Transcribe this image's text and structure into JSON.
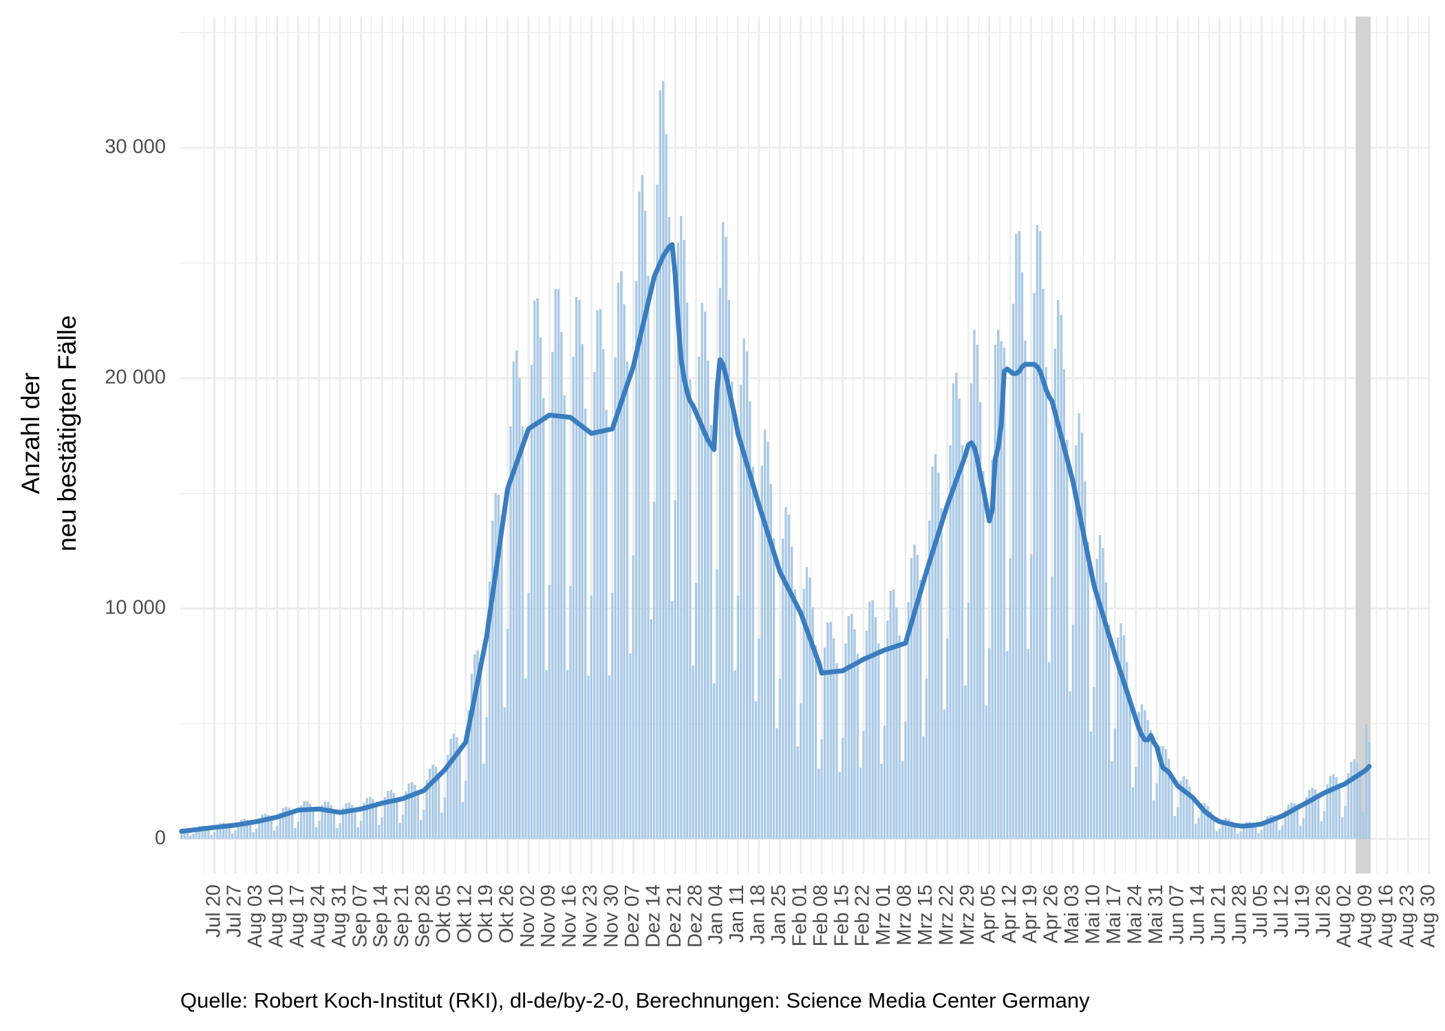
{
  "chart_data": {
    "type": "bar",
    "caption": "Quelle: Robert Koch-Institut (RKI), dl-de/by-2-0, Berechnungen: Science Media Center Germany",
    "ylabel": [
      "Anzahl der",
      "neu bestätigten Fälle"
    ],
    "ylim": [
      -1500,
      35700
    ],
    "yticks": [
      0,
      {
        "value": 10000,
        "label": "10 000"
      },
      {
        "value": 20000,
        "label": "20 000"
      },
      {
        "value": 30000,
        "label": "30 000"
      }
    ],
    "yminorticks": [
      5000,
      15000,
      25000,
      35000
    ],
    "grid": true,
    "color": "#a9c9e6",
    "categories": [
      null,
      null,
      null,
      null,
      null,
      null,
      null,
      null,
      null,
      null,
      null,
      "Jul 20",
      null,
      null,
      null,
      null,
      null,
      null,
      "Jul 27",
      null,
      null,
      null,
      null,
      null,
      null,
      "Aug 03",
      null,
      null,
      null,
      null,
      null,
      null,
      "Aug 10",
      null,
      null,
      null,
      null,
      null,
      null,
      "Aug 17",
      null,
      null,
      null,
      null,
      null,
      null,
      "Aug 24",
      null,
      null,
      null,
      null,
      null,
      null,
      "Aug 31",
      null,
      null,
      null,
      null,
      null,
      null,
      "Sep 07",
      null,
      null,
      null,
      null,
      null,
      null,
      "Sep 14",
      null,
      null,
      null,
      null,
      null,
      null,
      "Sep 21",
      null,
      null,
      null,
      null,
      null,
      null,
      "Sep 28",
      null,
      null,
      null,
      null,
      null,
      null,
      "Okt 05",
      null,
      null,
      null,
      null,
      null,
      null,
      "Okt 12",
      null,
      null,
      null,
      null,
      null,
      null,
      "Okt 19",
      null,
      null,
      null,
      null,
      null,
      null,
      "Okt 26",
      null,
      null,
      null,
      null,
      null,
      null,
      "Nov 02",
      null,
      null,
      null,
      null,
      null,
      null,
      "Nov 09",
      null,
      null,
      null,
      null,
      null,
      null,
      "Nov 16",
      null,
      null,
      null,
      null,
      null,
      null,
      "Nov 23",
      null,
      null,
      null,
      null,
      null,
      null,
      "Nov 30",
      null,
      null,
      null,
      null,
      null,
      null,
      "Dez 07",
      null,
      null,
      null,
      null,
      null,
      null,
      "Dez 14",
      null,
      null,
      null,
      null,
      null,
      null,
      "Dez 21",
      null,
      null,
      null,
      null,
      null,
      null,
      "Dez 28",
      null,
      null,
      null,
      null,
      null,
      null,
      "Jan 04",
      null,
      null,
      null,
      null,
      null,
      null,
      "Jan 11",
      null,
      null,
      null,
      null,
      null,
      null,
      "Jan 18",
      null,
      null,
      null,
      null,
      null,
      null,
      "Jan 25",
      null,
      null,
      null,
      null,
      null,
      null,
      "Feb 01",
      null,
      null,
      null,
      null,
      null,
      null,
      "Feb 08",
      null,
      null,
      null,
      null,
      null,
      null,
      "Feb 15",
      null,
      null,
      null,
      null,
      null,
      null,
      "Feb 22",
      null,
      null,
      null,
      null,
      null,
      null,
      "Mrz 01",
      null,
      null,
      null,
      null,
      null,
      null,
      "Mrz 08",
      null,
      null,
      null,
      null,
      null,
      null,
      "Mrz 15",
      null,
      null,
      null,
      null,
      null,
      null,
      "Mrz 22",
      null,
      null,
      null,
      null,
      null,
      null,
      "Mrz 29",
      null,
      null,
      null,
      null,
      null,
      null,
      "Apr 05",
      null,
      null,
      null,
      null,
      null,
      null,
      "Apr 12",
      null,
      null,
      null,
      null,
      null,
      null,
      "Apr 19",
      null,
      null,
      null,
      null,
      null,
      null,
      "Apr 26",
      null,
      null,
      null,
      null,
      null,
      null,
      "Mai 03",
      null,
      null,
      null,
      null,
      null,
      null,
      "Mai 10",
      null,
      null,
      null,
      null,
      null,
      null,
      "Mai 17",
      null,
      null,
      null,
      null,
      null,
      null,
      "Mai 24",
      null,
      null,
      null,
      null,
      null,
      null,
      "Mai 31",
      null,
      null,
      null,
      null,
      null,
      null,
      "Jun 07",
      null,
      null,
      null,
      null,
      null,
      null,
      "Jun 14",
      null,
      null,
      null,
      null,
      null,
      null,
      "Jun 21",
      null,
      null,
      null,
      null,
      null,
      null,
      "Jun 28",
      null,
      null,
      null,
      null,
      null,
      null,
      "Jul 05",
      null,
      null,
      null,
      null,
      null,
      null,
      "Jul 12",
      null,
      null,
      null,
      null,
      null,
      null,
      "Jul 19",
      null,
      null,
      null,
      null,
      null,
      null,
      "Jul 26",
      null,
      null,
      null,
      null,
      null,
      null,
      "Aug 02",
      null,
      null,
      null,
      null,
      null,
      null,
      "Aug 09",
      null,
      null,
      null,
      null,
      null,
      null,
      "Aug 16",
      null,
      null,
      null,
      null,
      null,
      null,
      "Aug 23",
      null,
      null,
      null,
      null,
      null,
      null,
      "Aug 30"
    ],
    "values": [
      430,
      410,
      380,
      150,
      230,
      470,
      550,
      570,
      550,
      490,
      190,
      300,
      590,
      690,
      710,
      670,
      600,
      230,
      360,
      710,
      840,
      860,
      820,
      740,
      290,
      450,
      900,
      1050,
      1090,
      1040,
      940,
      370,
      570,
      1140,
      1350,
      1400,
      1350,
      1220,
      480,
      750,
      1450,
      1640,
      1650,
      1530,
      1350,
      520,
      780,
      1470,
      1630,
      1610,
      1460,
      1250,
      470,
      690,
      1350,
      1550,
      1580,
      1480,
      1320,
      510,
      780,
      1540,
      1780,
      1830,
      1730,
      1550,
      610,
      930,
      1820,
      2090,
      2130,
      2000,
      1780,
      690,
      1050,
      2070,
      2410,
      2470,
      2340,
      2100,
      820,
      1260,
      2560,
      3060,
      3230,
      3140,
      2880,
      1150,
      1800,
      3650,
      4350,
      4570,
      4420,
      4050,
      1610,
      2520,
      5590,
      7170,
      8020,
      8190,
      7860,
      3260,
      5280,
      11170,
      13820,
      15010,
      14950,
      14040,
      5710,
      9120,
      17910,
      20730,
      21210,
      20020,
      17910,
      6970,
      10680,
      20570,
      23360,
      23470,
      21770,
      19140,
      7330,
      11040,
      21140,
      23880,
      23860,
      22010,
      19250,
      7330,
      10980,
      20930,
      23530,
      23400,
      21480,
      18690,
      7080,
      10560,
      20270,
      22950,
      22990,
      21260,
      18630,
      7110,
      10680,
      20910,
      24140,
      24640,
      23210,
      20720,
      8050,
      12300,
      24220,
      28100,
      28820,
      27270,
      24450,
      9540,
      14640,
      28410,
      32500,
      32890,
      30600,
      26990,
      10320,
      14700,
      25880,
      27040,
      26000,
      23280,
      19950,
      7520,
      11100,
      20930,
      23270,
      22880,
      20760,
      17960,
      6760,
      11700,
      23920,
      26780,
      26130,
      23400,
      19850,
      7320,
      10560,
      19730,
      21730,
      21150,
      18990,
      16160,
      5980,
      8700,
      16200,
      17770,
      17230,
      15410,
      13050,
      4810,
      6960,
      13040,
      14410,
      14080,
      12690,
      10830,
      4020,
      5880,
      10860,
      11810,
      11350,
      10050,
      8410,
      3060,
      4320,
      8300,
      9400,
      9420,
      8710,
      7630,
      2910,
      4380,
      8480,
      9680,
      9770,
      9100,
      8040,
      3090,
      4680,
      9040,
      10290,
      10360,
      9630,
      8490,
      3260,
      4920,
      9480,
      10770,
      10830,
      10050,
      8830,
      3380,
      5100,
      10280,
      12200,
      12780,
      12330,
      11250,
      4460,
      6960,
      13820,
      16160,
      16700,
      15910,
      14350,
      5630,
      8700,
      17090,
      19780,
      20240,
      19110,
      17100,
      6660,
      10260,
      19780,
      22100,
      21450,
      18960,
      15960,
      5800,
      8280,
      16450,
      21450,
      22100,
      21600,
      21320,
      8160,
      12180,
      23230,
      26260,
      26390,
      24600,
      21630,
      8240,
      12360,
      23690,
      26650,
      26390,
      23880,
      20480,
      7680,
      11400,
      21280,
      23400,
      22750,
      20400,
      17330,
      6400,
      9300,
      17090,
      18480,
      17640,
      15510,
      12900,
      4660,
      6600,
      12160,
      13190,
      12630,
      11140,
      9300,
      3370,
      4800,
      8740,
      9360,
      8840,
      7680,
      6300,
      2240,
      3120,
      5520,
      5850,
      5590,
      5160,
      4730,
      1680,
      2400,
      4030,
      4030,
      3900,
      3480,
      2840,
      1000,
      1380,
      2530,
      2730,
      2600,
      2280,
      1890,
      660,
      900,
      1550,
      1560,
      1430,
      1200,
      950,
      330,
      450,
      830,
      900,
      860,
      760,
      630,
      230,
      340,
      640,
      740,
      750,
      710,
      640,
      250,
      390,
      810,
      980,
      1040,
      1020,
      950,
      380,
      600,
      1230,
      1480,
      1570,
      1550,
      1430,
      570,
      900,
      1810,
      2130,
      2220,
      2150,
      1950,
      770,
      1200,
      2370,
      2740,
      2820,
      2680,
      2400,
      940,
      1440,
      2860,
      3340,
      3460,
      3290,
      2970,
      1160,
      5000,
      4200,
      null,
      null,
      null,
      null,
      null,
      null,
      null,
      null,
      null,
      null,
      null,
      null,
      null,
      null,
      null,
      null,
      null,
      null,
      null,
      null
    ],
    "moving_average": {
      "type": "line",
      "color": "#3a7dbf",
      "values": [
        330,
        345,
        360,
        375,
        390,
        405,
        420,
        440,
        455,
        470,
        485,
        500,
        514,
        529,
        543,
        557,
        571,
        586,
        600,
        621,
        643,
        664,
        686,
        707,
        729,
        750,
        779,
        807,
        836,
        864,
        893,
        921,
        950,
        993,
        1036,
        1079,
        1121,
        1164,
        1207,
        1250,
        1257,
        1264,
        1271,
        1279,
        1286,
        1293,
        1300,
        1279,
        1257,
        1236,
        1214,
        1193,
        1171,
        1150,
        1171,
        1193,
        1214,
        1236,
        1257,
        1279,
        1300,
        1336,
        1371,
        1407,
        1443,
        1479,
        1514,
        1550,
        1579,
        1607,
        1636,
        1664,
        1693,
        1721,
        1750,
        1800,
        1850,
        1900,
        1950,
        2000,
        2050,
        2100,
        2229,
        2357,
        2486,
        2614,
        2743,
        2871,
        3000,
        3171,
        3343,
        3514,
        3686,
        3857,
        4029,
        4200,
        4857,
        5514,
        6171,
        6829,
        7486,
        8143,
        8800,
        9714,
        10629,
        11543,
        12457,
        13371,
        14286,
        15200,
        15571,
        15943,
        16314,
        16686,
        17057,
        17429,
        17800,
        17886,
        17971,
        18057,
        18143,
        18229,
        18314,
        18400,
        18386,
        18371,
        18357,
        18343,
        18329,
        18314,
        18300,
        18200,
        18100,
        18000,
        17900,
        17800,
        17700,
        17600,
        17629,
        17657,
        17686,
        17714,
        17743,
        17771,
        17800,
        18186,
        18571,
        18957,
        19343,
        19729,
        20114,
        20500,
        21057,
        21614,
        22171,
        22729,
        23286,
        23843,
        24400,
        24700,
        25000,
        25300,
        25500,
        25700,
        25800,
        24500,
        22500,
        20800,
        20000,
        19400,
        19000,
        18800,
        18500,
        18200,
        17900,
        17600,
        17300,
        17100,
        16900,
        19500,
        20800,
        20600,
        20100,
        19500,
        18900,
        18300,
        17600,
        17157,
        16714,
        16271,
        15829,
        15386,
        14943,
        14500,
        14086,
        13671,
        13257,
        12843,
        12429,
        12014,
        11600,
        11343,
        11086,
        10829,
        10571,
        10314,
        10057,
        9800,
        9443,
        9086,
        8729,
        8371,
        8014,
        7657,
        7200,
        7214,
        7229,
        7243,
        7257,
        7271,
        7286,
        7300,
        7371,
        7443,
        7514,
        7586,
        7657,
        7729,
        7800,
        7857,
        7914,
        7971,
        8029,
        8086,
        8143,
        8200,
        8243,
        8286,
        8329,
        8371,
        8414,
        8457,
        8500,
        8943,
        9386,
        9829,
        10271,
        10714,
        11157,
        11600,
        12014,
        12429,
        12843,
        13257,
        13671,
        14086,
        14500,
        14857,
        15214,
        15571,
        15929,
        16286,
        16643,
        17100,
        17200,
        17000,
        16500,
        15800,
        15200,
        14500,
        13800,
        14300,
        16500,
        17000,
        18000,
        20300,
        20400,
        20300,
        20200,
        20200,
        20300,
        20500,
        20600,
        20600,
        20600,
        20600,
        20500,
        20300,
        19900,
        19500,
        19200,
        19000,
        18500,
        18000,
        17500,
        17000,
        16500,
        16000,
        15500,
        14857,
        14214,
        13571,
        12929,
        12286,
        11643,
        11000,
        10571,
        10143,
        9714,
        9286,
        8857,
        8429,
        8000,
        7600,
        7200,
        6800,
        6400,
        6000,
        5600,
        5200,
        4800,
        4500,
        4300,
        4300,
        4500,
        4200,
        4000,
        3500,
        3100,
        3000,
        2900,
        2700,
        2500,
        2300,
        2200,
        2100,
        2000,
        1900,
        1800,
        1650,
        1500,
        1350,
        1200,
        1100,
        1000,
        900,
        820,
        750,
        720,
        690,
        660,
        630,
        600,
        580,
        560,
        560,
        570,
        580,
        590,
        610,
        630,
        650,
        700,
        750,
        800,
        850,
        900,
        950,
        1000,
        1070,
        1140,
        1210,
        1290,
        1360,
        1430,
        1500,
        1570,
        1640,
        1710,
        1790,
        1860,
        1930,
        2000,
        2060,
        2110,
        2170,
        2230,
        2290,
        2340,
        2400,
        2490,
        2570,
        2660,
        2740,
        2830,
        2910,
        3000,
        3150,
        null,
        null,
        null,
        null,
        null,
        null,
        null,
        null,
        null,
        null,
        null,
        null,
        null,
        null,
        null,
        null,
        null,
        null,
        null,
        null
      ]
    }
  }
}
